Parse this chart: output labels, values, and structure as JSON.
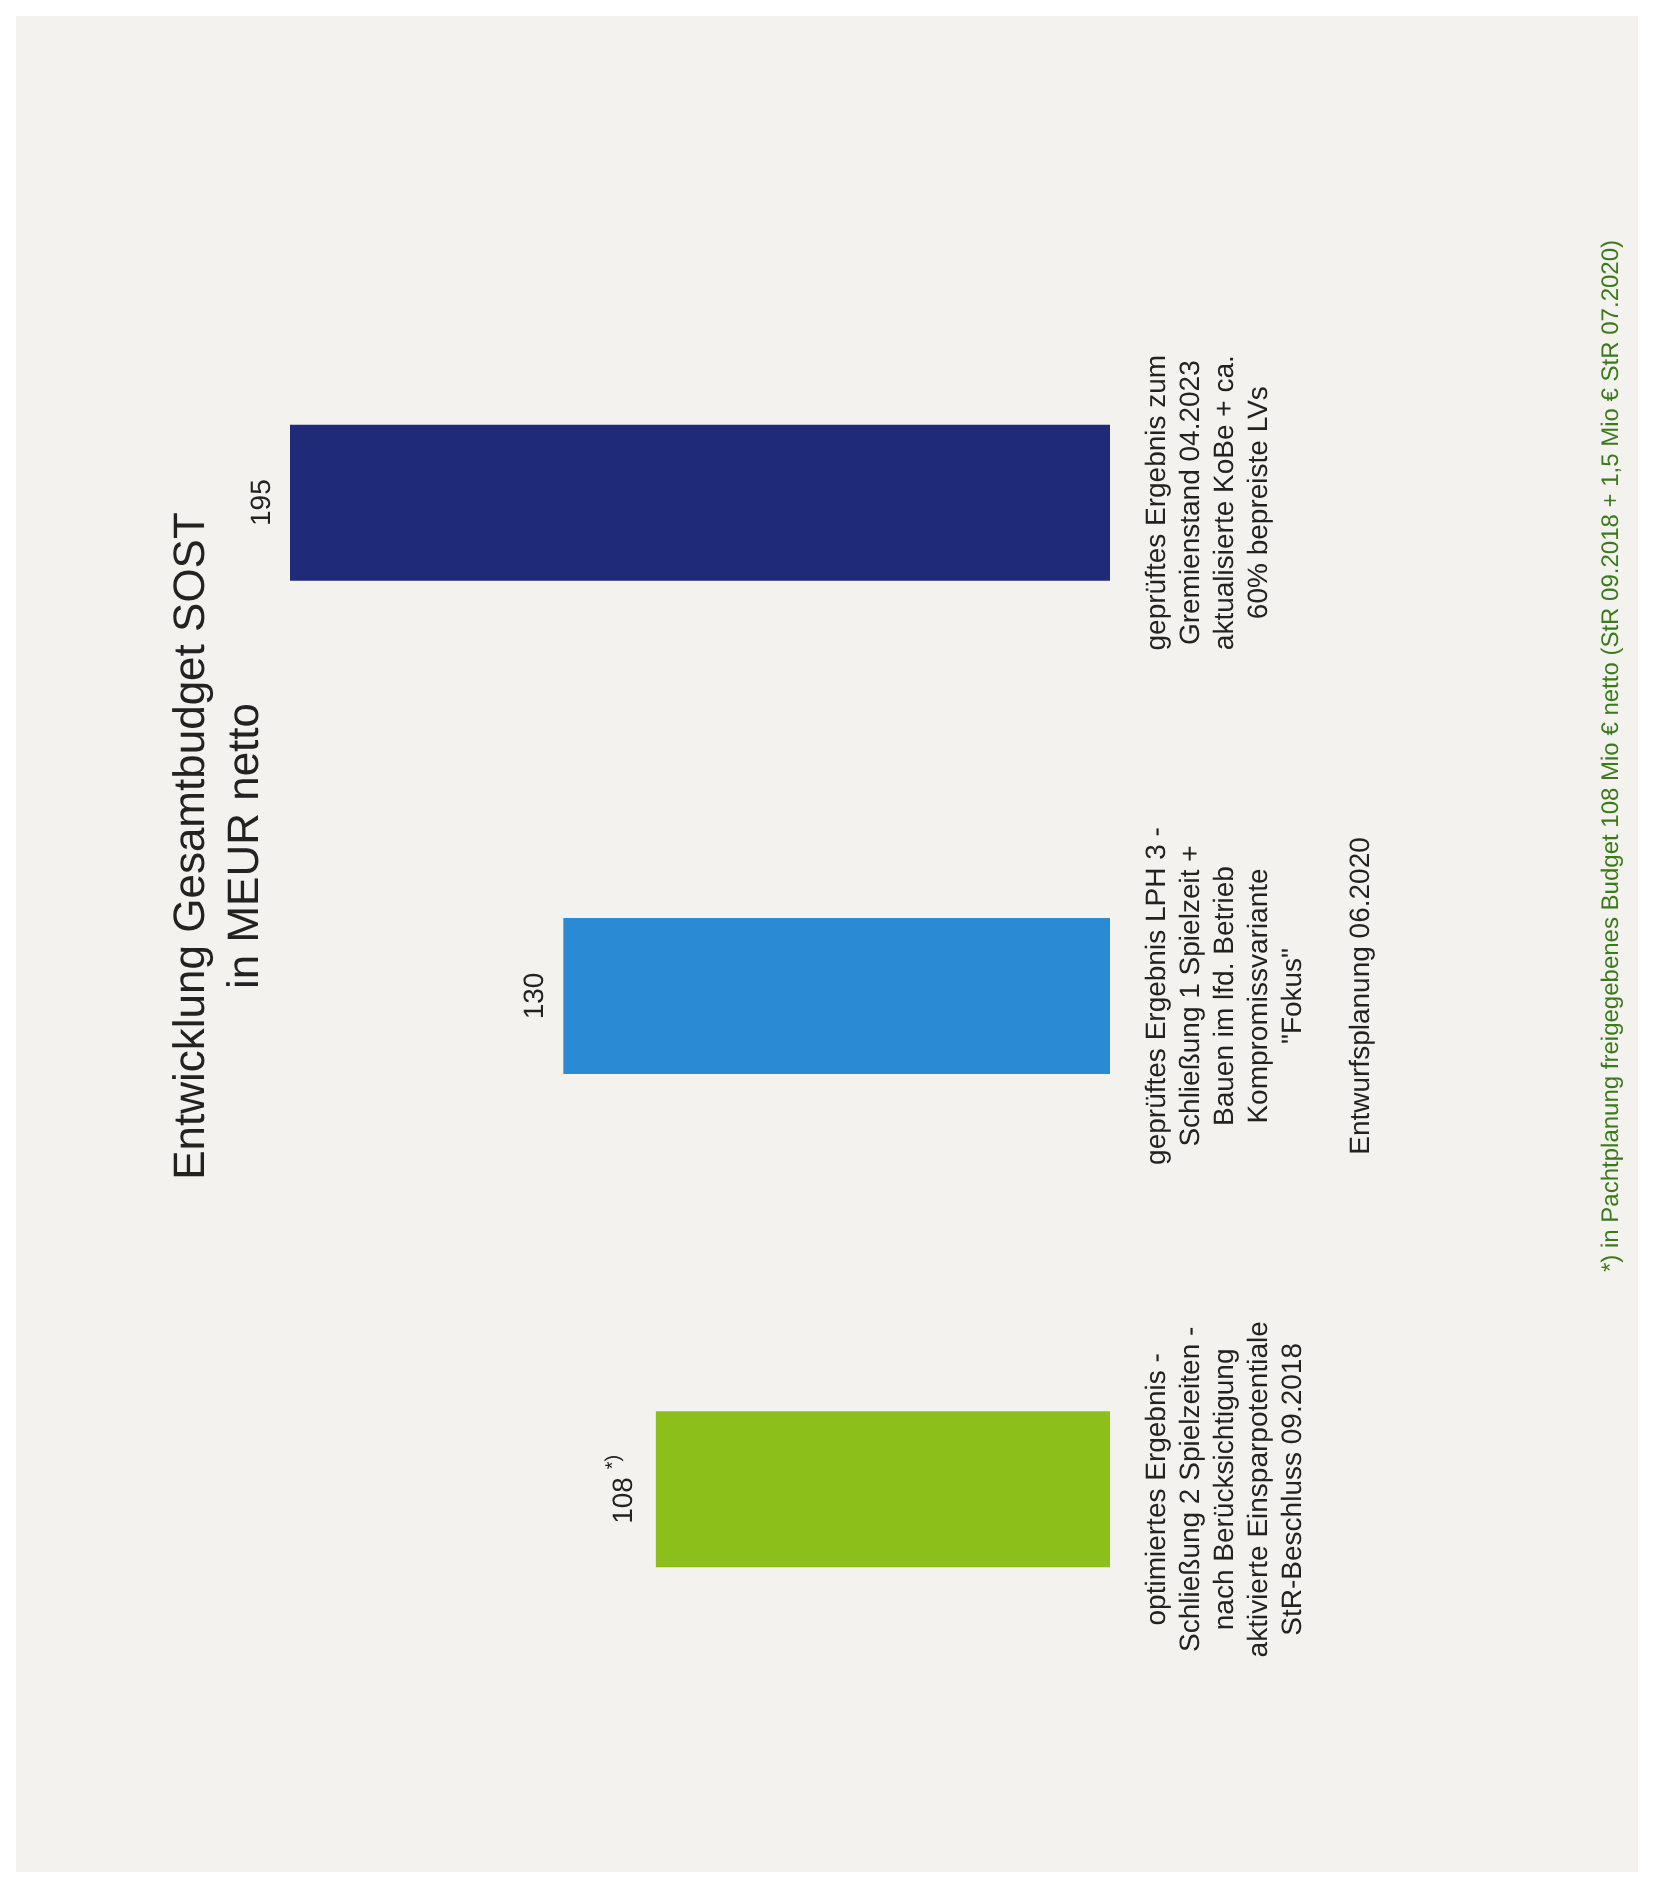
{
  "chart_data": {
    "type": "bar",
    "title": "Entwicklung Gesamtbudget SOST\nin MEUR netto",
    "orientation": "horizontal",
    "categories": [
      "geprüftes Ergebnis zum\nGremienstand 04.2023\naktualisierte KoBe + ca.\n60% bepreiste LVs",
      "geprüftes Ergebnis LPH 3 -\nSchließung 1 Spielzeit +\nBauen im lfd. Betrieb\nKompromissvariante\n\"Fokus\"\n\nEntwurfsplanung 06.2020",
      "optimiertes Ergebnis -\nSchließung 2 Spielzeiten -\nnach Berücksichtigung\naktivierte Einsparpotentiale\nStR-Beschluss 09.2018"
    ],
    "values": [
      195,
      130,
      108
    ],
    "colors": [
      "#1f2a78",
      "#2a8ad4",
      "#8cbf1a"
    ],
    "annotations": [
      "*) in Pachtplanung freigegebenes Budget 108 Mio € netto (StR 09.2018 + 1,5 Mio € StR 07.2020)"
    ],
    "value_labels": [
      "195",
      "130",
      "108 $^{*)}$"
    ]
  }
}
